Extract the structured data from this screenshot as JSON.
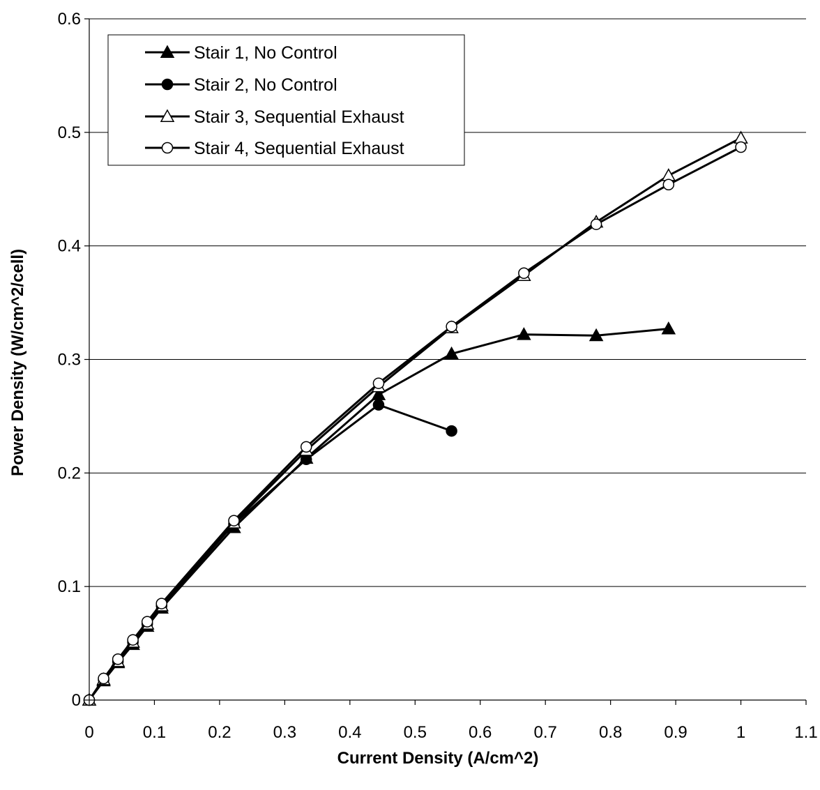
{
  "chart_data": {
    "type": "line",
    "title": "",
    "xlabel": "Current Density (A/cm^2)",
    "ylabel": "Power Density (W/cm^2/cell)",
    "xlim": [
      0,
      1.1
    ],
    "ylim": [
      0,
      0.6
    ],
    "xticks": [
      0,
      0.1,
      0.2,
      0.3,
      0.4,
      0.5,
      0.6,
      0.7,
      0.8,
      0.9,
      1,
      1.1
    ],
    "yticks": [
      0,
      0.1,
      0.2,
      0.3,
      0.4,
      0.5,
      0.6
    ],
    "xtick_labels": [
      "0",
      "0.1",
      "0.2",
      "0.3",
      "0.4",
      "0.5",
      "0.6",
      "0.7",
      "0.8",
      "0.9",
      "1",
      "1.1"
    ],
    "ytick_labels": [
      "0",
      "0.1",
      "0.2",
      "0.3",
      "0.4",
      "0.5",
      "0.6"
    ],
    "grid": "horizontal",
    "legend_position": "top-left",
    "series": [
      {
        "name": "Stair 1, No Control",
        "marker": "triangle-filled",
        "x": [
          0,
          0.022,
          0.044,
          0.067,
          0.089,
          0.111,
          0.222,
          0.333,
          0.444,
          0.556,
          0.667,
          0.778,
          0.889
        ],
        "y": [
          0,
          0.017,
          0.033,
          0.049,
          0.065,
          0.081,
          0.152,
          0.213,
          0.269,
          0.305,
          0.322,
          0.321,
          0.327
        ]
      },
      {
        "name": "Stair 2, No Control",
        "marker": "circle-filled",
        "x": [
          0,
          0.022,
          0.044,
          0.067,
          0.089,
          0.111,
          0.222,
          0.333,
          0.444,
          0.556
        ],
        "y": [
          0,
          0.018,
          0.034,
          0.051,
          0.067,
          0.083,
          0.155,
          0.212,
          0.26,
          0.237
        ]
      },
      {
        "name": "Stair 3, Sequential Exhaust",
        "marker": "triangle-open",
        "x": [
          0,
          0.022,
          0.044,
          0.067,
          0.089,
          0.111,
          0.222,
          0.333,
          0.444,
          0.556,
          0.667,
          0.778,
          0.889,
          1.0
        ],
        "y": [
          0,
          0.018,
          0.034,
          0.051,
          0.067,
          0.083,
          0.156,
          0.22,
          0.276,
          0.328,
          0.374,
          0.421,
          0.462,
          0.495
        ]
      },
      {
        "name": "Stair 4, Sequential Exhaust",
        "marker": "circle-open",
        "x": [
          0,
          0.022,
          0.044,
          0.067,
          0.089,
          0.111,
          0.222,
          0.333,
          0.444,
          0.556,
          0.667,
          0.778,
          0.889,
          1.0
        ],
        "y": [
          0,
          0.019,
          0.036,
          0.053,
          0.069,
          0.085,
          0.158,
          0.223,
          0.279,
          0.329,
          0.376,
          0.419,
          0.454,
          0.487
        ]
      }
    ]
  }
}
